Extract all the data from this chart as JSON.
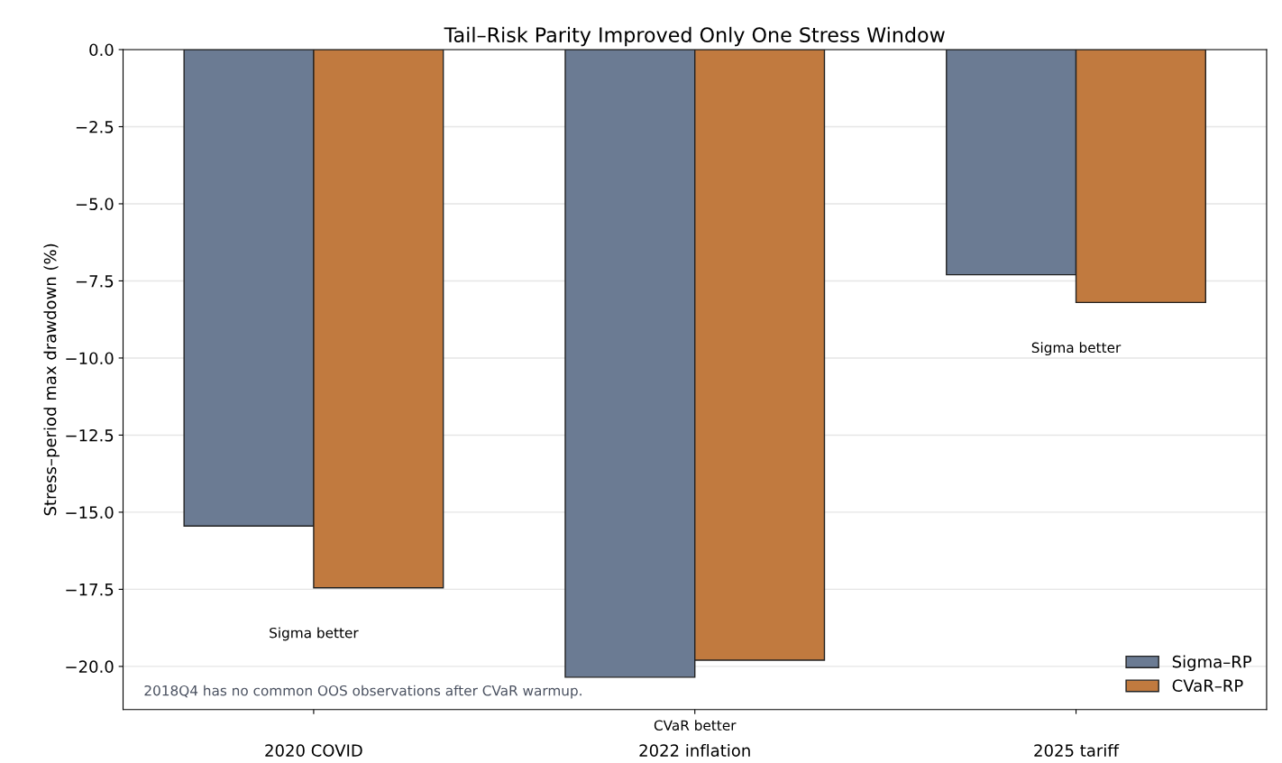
{
  "chart_data": {
    "type": "bar",
    "title": "Tail–Risk Parity Improved Only One Stress Window",
    "ylabel": "Stress–period max drawdown (%)",
    "categories": [
      "2020 COVID",
      "2022 inflation",
      "2025 tariff"
    ],
    "series": [
      {
        "name": "Sigma–RP",
        "color": "#6b7b93",
        "values": [
          -15.45,
          -20.35,
          -7.3
        ]
      },
      {
        "name": "CVaR–RP",
        "color": "#c17a3f",
        "values": [
          -17.45,
          -19.8,
          -8.2
        ]
      }
    ],
    "ylim": [
      -21.4,
      0
    ],
    "yticks": [
      {
        "value": 0,
        "label": "0.0"
      },
      {
        "value": -2.5,
        "label": "−2.5"
      },
      {
        "value": -5,
        "label": "−5.0"
      },
      {
        "value": -7.5,
        "label": "−7.5"
      },
      {
        "value": -10,
        "label": "−10.0"
      },
      {
        "value": -12.5,
        "label": "−12.5"
      },
      {
        "value": -15,
        "label": "−15.0"
      },
      {
        "value": -17.5,
        "label": "−17.5"
      },
      {
        "value": -20,
        "label": "−20.0"
      }
    ],
    "grid": "y",
    "legend": "bottom right",
    "annotations": [
      "Sigma better",
      "CVaR better",
      "Sigma better",
      "2018Q4 has no common OOS observations after CVaR warmup."
    ]
  }
}
